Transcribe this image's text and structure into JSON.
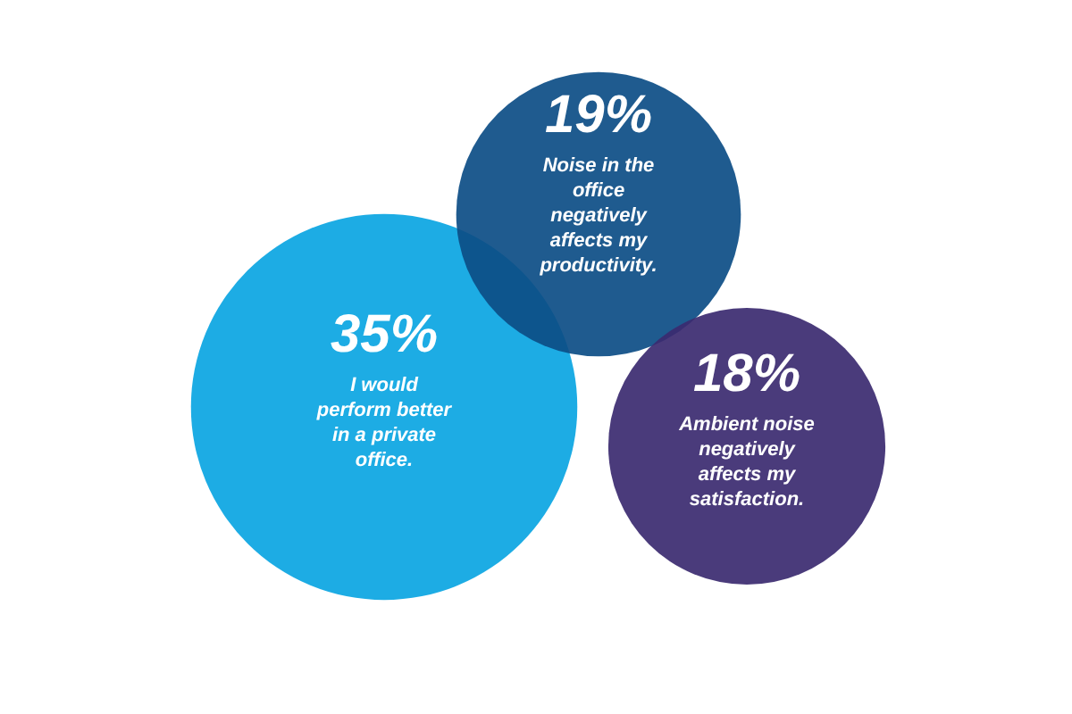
{
  "chart_data": {
    "type": "other",
    "categories": [
      "I would\nperform better\nin a private\noffice.",
      "Noise in the\noffice\nnegatively\naffects my\nproductivity.",
      "Ambient noise\nnegatively\naffects my\nsatisfaction."
    ],
    "values": [
      35,
      19,
      18
    ],
    "value_labels": [
      "35%",
      "19%",
      "18%"
    ],
    "colors": [
      "#0aa5e2",
      "#0c4d86",
      "#3b2a70"
    ]
  }
}
